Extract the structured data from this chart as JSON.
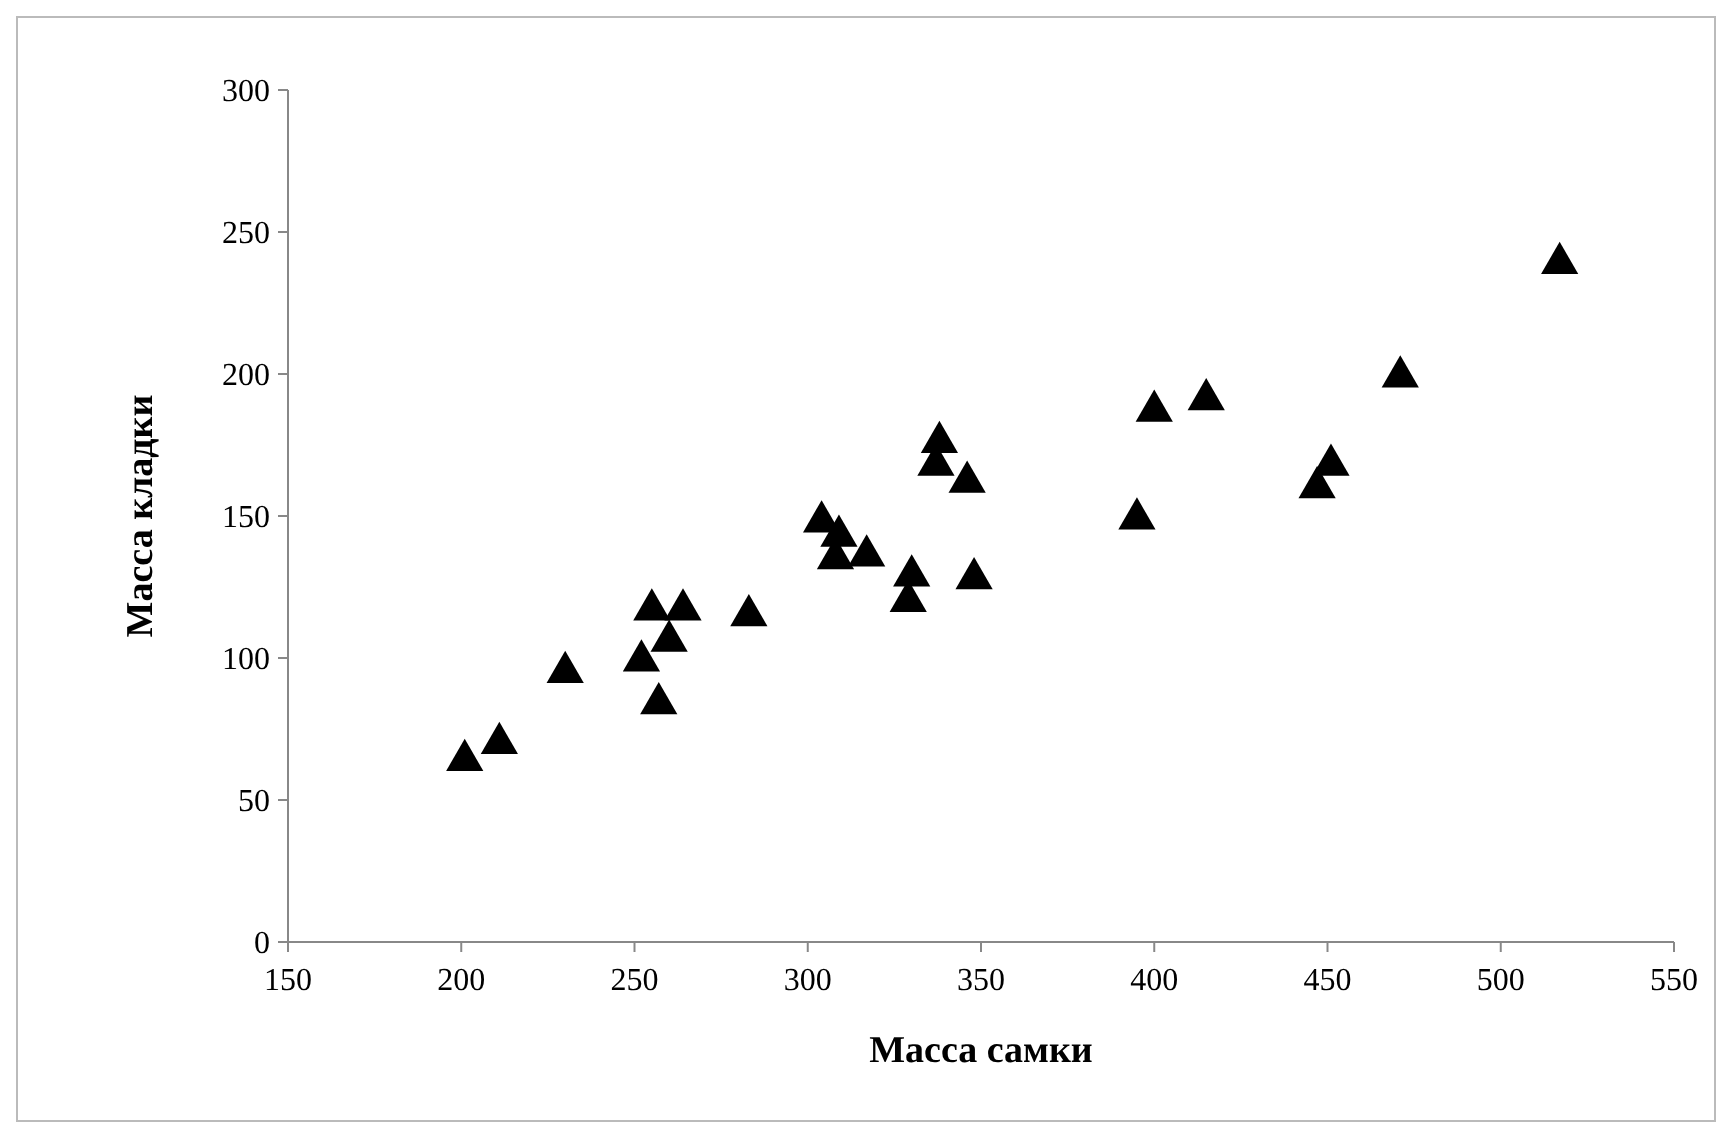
{
  "chart_data": {
    "type": "scatter",
    "xlabel": "Масса самки",
    "ylabel": "Масса кладки",
    "marker": "triangle",
    "grid": false,
    "xlim": [
      150,
      550
    ],
    "xticks": [
      150,
      200,
      250,
      300,
      350,
      400,
      450,
      500,
      550
    ],
    "ylim": [
      0,
      300
    ],
    "yticks": [
      0,
      50,
      100,
      150,
      200,
      250,
      300
    ],
    "series": [
      {
        "color": "#000000",
        "x": [
          201,
          211,
          230,
          252,
          255,
          260,
          257,
          264,
          283,
          304,
          309,
          308,
          317,
          330,
          329,
          338,
          337,
          346,
          348,
          395,
          400,
          415,
          447,
          451,
          471,
          517
        ],
        "values": [
          64,
          70,
          95,
          99,
          117,
          106,
          84,
          117,
          115,
          148,
          143,
          135,
          136,
          129,
          120,
          176,
          168,
          162,
          128,
          149,
          187,
          191,
          160,
          168,
          199,
          239
        ]
      }
    ]
  }
}
